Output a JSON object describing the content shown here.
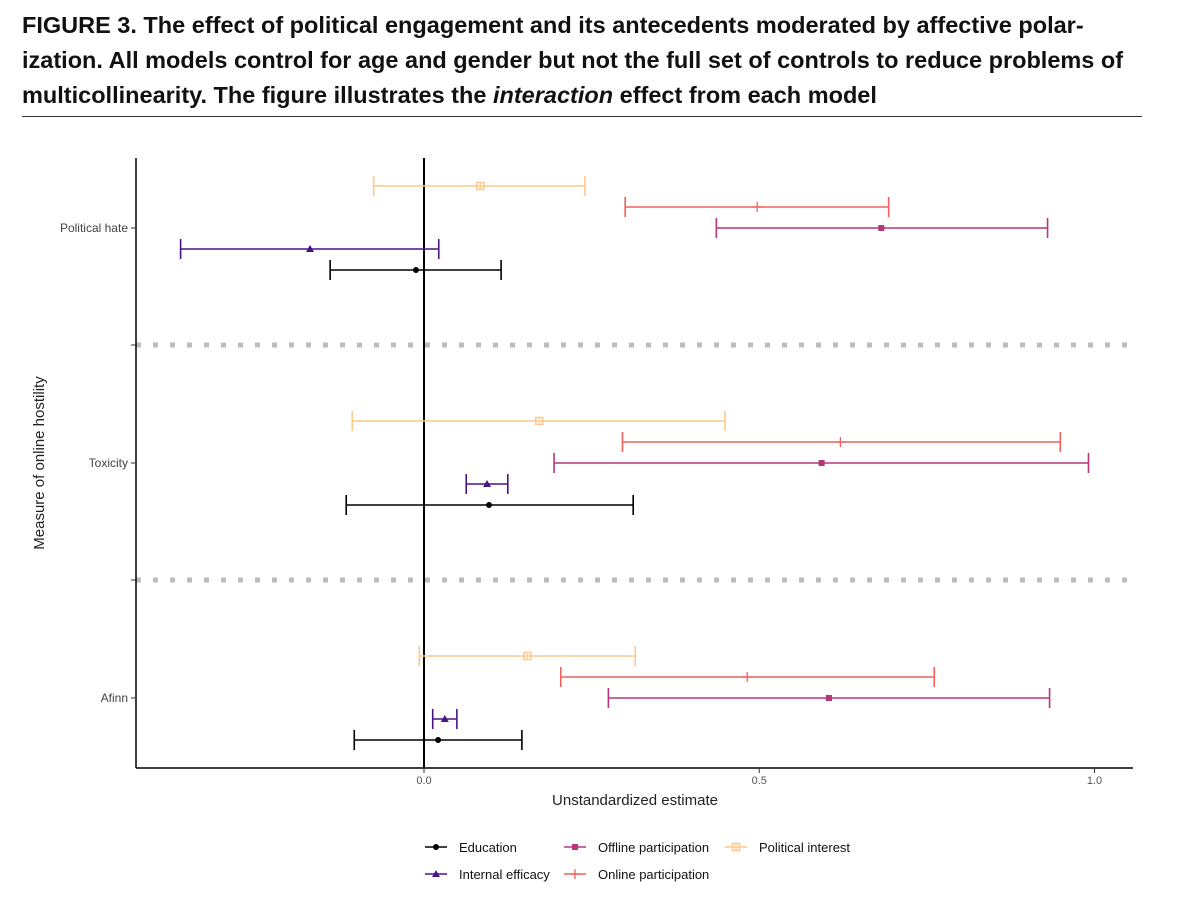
{
  "figure": {
    "title_pre": "FIGURE 3. The effect of political engagement and its antecedents moderated by affective polar-ization. All models control for age and gender but not the full set of controls to reduce problems of multicollinearity. The figure illustrates the ",
    "title_italic": "interaction",
    "title_post": " effect from each model"
  },
  "chart_data": {
    "type": "forest",
    "xlabel": "Unstandardized estimate",
    "ylabel": "Measure of online hostility",
    "xlim": [
      -0.43,
      1.06
    ],
    "xticks": [
      0.0,
      0.5,
      1.0
    ],
    "xtick_labels": [
      "0.0",
      "0.5",
      "1.0"
    ],
    "categories": [
      "Political hate",
      "Toxicity",
      "Afinn"
    ],
    "reference_line": 0,
    "legend_position": "bottom",
    "series": [
      {
        "name": "Political interest",
        "color": "#fcc98b",
        "marker": "square-cross",
        "values": [
          {
            "est": 0.084,
            "lo": -0.075,
            "hi": 0.24
          },
          {
            "est": 0.172,
            "lo": -0.107,
            "hi": 0.449
          },
          {
            "est": 0.154,
            "lo": -0.007,
            "hi": 0.315
          }
        ]
      },
      {
        "name": "Online participation",
        "color": "#f1605d",
        "marker": "plus",
        "values": [
          {
            "est": 0.497,
            "lo": 0.3,
            "hi": 0.693
          },
          {
            "est": 0.621,
            "lo": 0.296,
            "hi": 0.949
          },
          {
            "est": 0.482,
            "lo": 0.204,
            "hi": 0.761
          }
        ]
      },
      {
        "name": "Offline participation",
        "color": "#b5367a",
        "marker": "square",
        "values": [
          {
            "est": 0.682,
            "lo": 0.436,
            "hi": 0.93
          },
          {
            "est": 0.593,
            "lo": 0.194,
            "hi": 0.991
          },
          {
            "est": 0.604,
            "lo": 0.275,
            "hi": 0.933
          }
        ]
      },
      {
        "name": "Internal efficacy",
        "color": "#4a1486",
        "marker": "triangle",
        "values": [
          {
            "est": -0.17,
            "lo": -0.363,
            "hi": 0.022
          },
          {
            "est": 0.094,
            "lo": 0.063,
            "hi": 0.125
          },
          {
            "est": 0.031,
            "lo": 0.013,
            "hi": 0.049
          }
        ]
      },
      {
        "name": "Education",
        "color": "#000000",
        "marker": "circle",
        "values": [
          {
            "est": -0.012,
            "lo": -0.14,
            "hi": 0.115
          },
          {
            "est": 0.097,
            "lo": -0.116,
            "hi": 0.312
          },
          {
            "est": 0.021,
            "lo": -0.104,
            "hi": 0.146
          }
        ]
      }
    ],
    "legend_order": [
      "Education",
      "Offline participation",
      "Political interest",
      "Internal efficacy",
      "Online participation"
    ]
  }
}
